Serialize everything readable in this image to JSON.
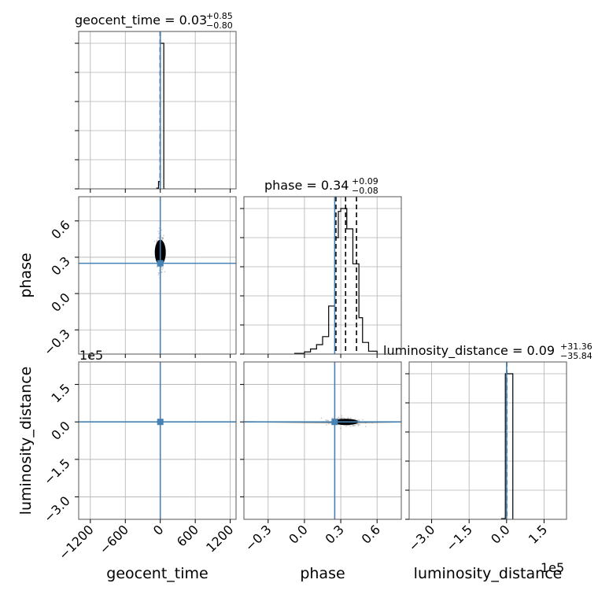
{
  "chart_data": {
    "type": "corner",
    "truth_color": "#4682b4",
    "hist_color": "#000000",
    "params": [
      {
        "name": "geocent_time",
        "title_prefix": "geocent_time = 0.03",
        "plus": "+0.85",
        "minus": "−0.80",
        "range": [
          -1400,
          1300
        ],
        "ticks": [
          -1200,
          -600,
          0,
          600,
          1200
        ],
        "tick_labels": [
          "−1200",
          "−600",
          "0",
          "600",
          "1200"
        ],
        "truth": 0,
        "quantiles": [
          -0.77,
          0.03,
          0.88
        ],
        "hist_bins": [
          -60,
          -30,
          0,
          30,
          60,
          90
        ],
        "hist_counts": [
          0.5,
          5,
          100,
          100,
          0
        ]
      },
      {
        "name": "phase",
        "title_prefix": "phase = 0.34",
        "plus": "+0.09",
        "minus": "−0.08",
        "range": [
          -0.5,
          0.8
        ],
        "ticks": [
          -0.3,
          0.0,
          0.3,
          0.6
        ],
        "tick_labels": [
          "−0.3",
          "0.0",
          "0.3",
          "0.6"
        ],
        "truth": 0.25,
        "quantiles": [
          0.26,
          0.34,
          0.43
        ],
        "hist_bins": [
          -0.08,
          0.0,
          0.05,
          0.1,
          0.15,
          0.2,
          0.25,
          0.28,
          0.3,
          0.35,
          0.4,
          0.45,
          0.48,
          0.53,
          0.6
        ],
        "hist_counts": [
          0.5,
          1.5,
          3.5,
          6.5,
          12,
          33,
          80,
          98,
          100,
          86,
          62,
          25,
          8,
          2
        ]
      },
      {
        "name": "luminosity_distance",
        "title_prefix": "luminosity_distance = 0.09",
        "plus": "+31.36",
        "minus": "−35.84",
        "range": [
          -390000.0,
          240000.0
        ],
        "ticks": [
          -300000.0,
          -150000.0,
          0,
          150000.0
        ],
        "tick_labels": [
          "−3.0",
          "−1.5",
          "0.0",
          "1.5"
        ],
        "offset_text": "1e5",
        "truth": 0,
        "quantiles": [
          -35.75,
          0.09,
          31.45
        ],
        "hist_bins": [
          -20000,
          -5000,
          10000,
          25000
        ],
        "hist_counts": [
          0.5,
          100,
          100
        ]
      }
    ]
  }
}
